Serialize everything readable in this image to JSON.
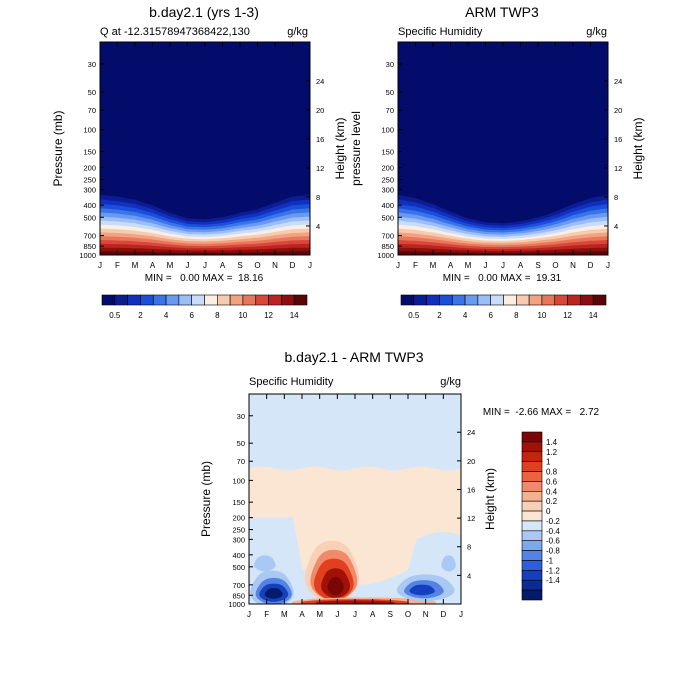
{
  "chart_data": [
    {
      "type": "heatmap",
      "title": "b.day2.1 (yrs 1-3)",
      "left_label": "Q at -12.31578947368422,130",
      "right_label": "g/kg",
      "ylabel": "Pressure (mb)",
      "ylabel_right": "Height (km)",
      "months": [
        "J",
        "F",
        "M",
        "A",
        "M",
        "J",
        "J",
        "A",
        "S",
        "O",
        "N",
        "D",
        "J"
      ],
      "pressure_ticks": [
        "30",
        "50",
        "70",
        "100",
        "150",
        "200",
        "250",
        "300",
        "400",
        "500",
        "700",
        "850",
        "1000"
      ],
      "height_ticks": [
        "24",
        "20",
        "16",
        "12",
        "8",
        "4"
      ],
      "stats": "MIN =   0.00 MAX =  18.16",
      "colorbar_labels": [
        "0.5",
        "2",
        "4",
        "6",
        "8",
        "10",
        "12",
        "14"
      ],
      "moist_top_mb": [
        300,
        310,
        330,
        370,
        430,
        480,
        490,
        470,
        430,
        400,
        350,
        310,
        300
      ]
    },
    {
      "type": "heatmap",
      "title": "ARM TWP3",
      "left_label": "Specific Humidity",
      "right_label": "g/kg",
      "ylabel": "pressure level",
      "ylabel_right": "Height (km)",
      "months": [
        "J",
        "F",
        "M",
        "A",
        "M",
        "J",
        "J",
        "A",
        "S",
        "O",
        "N",
        "D",
        "J"
      ],
      "pressure_ticks": [
        "30",
        "50",
        "70",
        "100",
        "150",
        "200",
        "250",
        "300",
        "400",
        "500",
        "700",
        "850",
        "1000"
      ],
      "height_ticks": [
        "24",
        "20",
        "16",
        "12",
        "8",
        "4"
      ],
      "stats": "MIN =   0.00 MAX =  19.31",
      "colorbar_labels": [
        "0.5",
        "2",
        "4",
        "6",
        "8",
        "10",
        "12",
        "14"
      ],
      "moist_top_mb": [
        300,
        320,
        360,
        420,
        480,
        520,
        530,
        510,
        470,
        420,
        360,
        320,
        300
      ]
    },
    {
      "type": "heatmap",
      "title": "b.day2.1 - ARM TWP3",
      "left_label": "Specific Humidity",
      "right_label": "g/kg",
      "ylabel": "Pressure (mb)",
      "ylabel_right": "Height (km)",
      "months": [
        "J",
        "F",
        "M",
        "A",
        "M",
        "J",
        "J",
        "A",
        "S",
        "O",
        "N",
        "D",
        "J"
      ],
      "pressure_ticks": [
        "30",
        "50",
        "70",
        "100",
        "150",
        "200",
        "250",
        "300",
        "400",
        "500",
        "700",
        "850",
        "1000"
      ],
      "height_ticks": [
        "24",
        "20",
        "16",
        "12",
        "8",
        "4"
      ],
      "stats": "MIN =  -2.66 MAX =   2.72",
      "colorbar_labels": [
        "1.4",
        "1.2",
        "1",
        "0.8",
        "0.6",
        "0.4",
        "0.2",
        "0",
        "-0.2",
        "-0.4",
        "-0.6",
        "-0.8",
        "-1",
        "-1.2",
        "-1.4"
      ]
    }
  ],
  "colors": {
    "seq": [
      "#030c6a",
      "#0c1c92",
      "#1230c0",
      "#1a4fdb",
      "#3a74e8",
      "#6a9af0",
      "#9cbdf5",
      "#c9dcf8",
      "#fbeee2",
      "#f7cbb0",
      "#f2a27f",
      "#e8765a",
      "#d9473a",
      "#bd2420",
      "#8c0f10",
      "#5a0507"
    ],
    "div_pos": [
      "#fbe6d4",
      "#f8d0b6",
      "#f5b092",
      "#f18a6a",
      "#ea6444",
      "#e0401f",
      "#c52410",
      "#a01108",
      "#7a0606"
    ],
    "div_neg": [
      "#d4e6f8",
      "#a9c8f4",
      "#7ea8ee",
      "#5583e4",
      "#2e5ed8",
      "#1440be",
      "#0a2a96",
      "#051a6a"
    ]
  }
}
